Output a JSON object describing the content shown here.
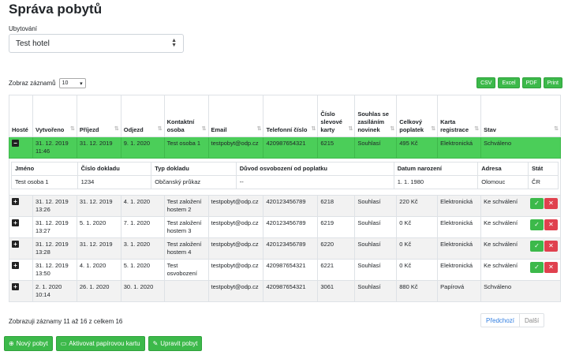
{
  "title": "Správa pobytů",
  "select": {
    "label": "Ubytování",
    "value": "Test hotel"
  },
  "length": {
    "label": "Zobraz záznamů",
    "value": "10"
  },
  "exports": [
    "CSV",
    "Excel",
    "PDF",
    "Print"
  ],
  "columns": [
    "Hosté",
    "Vytvořeno",
    "Příjezd",
    "Odjezd",
    "Kontaktní osoba",
    "Email",
    "Telefonní číslo",
    "Číslo slevové karty",
    "Souhlas se zasíláním novinek",
    "Celkový poplatek",
    "Karta registrace",
    "Stav"
  ],
  "rows": [
    {
      "toggle": "−",
      "created": "31. 12. 2019 11:46",
      "arrival": "31. 12. 2019",
      "departure": "9. 1. 2020",
      "contact": "Test osoba 1",
      "email": "testpobyt@odp.cz",
      "phone": "420987654321",
      "card": "6215",
      "consent": "Souhlasí",
      "fee": "495 Kč",
      "regcard": "Elektronická",
      "status": "Schváleno"
    },
    {
      "toggle": "+",
      "created": "31. 12. 2019 13:26",
      "arrival": "31. 12. 2019",
      "departure": "4. 1. 2020",
      "contact": "Test založení hostem 2",
      "email": "testpobyt@odp.cz",
      "phone": "420123456789",
      "card": "6218",
      "consent": "Souhlasí",
      "fee": "220 Kč",
      "regcard": "Elektronická",
      "status": "Ke schválení"
    },
    {
      "toggle": "+",
      "created": "31. 12. 2019 13:27",
      "arrival": "5. 1. 2020",
      "departure": "7. 1. 2020",
      "contact": "Test založení hostem 3",
      "email": "testpobyt@odp.cz",
      "phone": "420123456789",
      "card": "6219",
      "consent": "Souhlasí",
      "fee": "0 Kč",
      "regcard": "Elektronická",
      "status": "Ke schválení"
    },
    {
      "toggle": "+",
      "created": "31. 12. 2019 13:28",
      "arrival": "31. 12. 2019",
      "departure": "3. 1. 2020",
      "contact": "Test založení hostem 4",
      "email": "testpobyt@odp.cz",
      "phone": "420123456789",
      "card": "6220",
      "consent": "Souhlasí",
      "fee": "0 Kč",
      "regcard": "Elektronická",
      "status": "Ke schválení"
    },
    {
      "toggle": "+",
      "created": "31. 12. 2019 13:50",
      "arrival": "4. 1. 2020",
      "departure": "5. 1. 2020",
      "contact": "Test osvobození",
      "email": "testpobyt@odp.cz",
      "phone": "420987654321",
      "card": "6221",
      "consent": "Souhlasí",
      "fee": "0 Kč",
      "regcard": "Elektronická",
      "status": "Ke schválení"
    },
    {
      "toggle": "+",
      "created": "2. 1. 2020 10:14",
      "arrival": "26. 1. 2020",
      "departure": "30. 1. 2020",
      "contact": "",
      "email": "testpobyt@odp.cz",
      "phone": "420987654321",
      "card": "3061",
      "consent": "Souhlasí",
      "fee": "880 Kč",
      "regcard": "Papírová",
      "status": "Schváleno"
    }
  ],
  "guests": {
    "columns": [
      "Jméno",
      "Číslo dokladu",
      "Typ dokladu",
      "Důvod osvobození od poplatku",
      "Datum narození",
      "Adresa",
      "Stát"
    ],
    "rows": [
      [
        "Test osoba 1",
        "1234",
        "Občanský průkaz",
        "--",
        "1. 1. 1980",
        "Olomouc",
        "ČR"
      ]
    ]
  },
  "info": "Zobrazuji záznamy 11 až 16 z celkem 16",
  "pager": {
    "prev": "Předchozí",
    "next": "Další"
  },
  "buttons": {
    "new": "Nový pobyt",
    "activate": "Aktivovat papírovou kartu",
    "edit": "Upravit pobyt"
  },
  "icons": {
    "approve": "✓",
    "reject": "✕"
  }
}
